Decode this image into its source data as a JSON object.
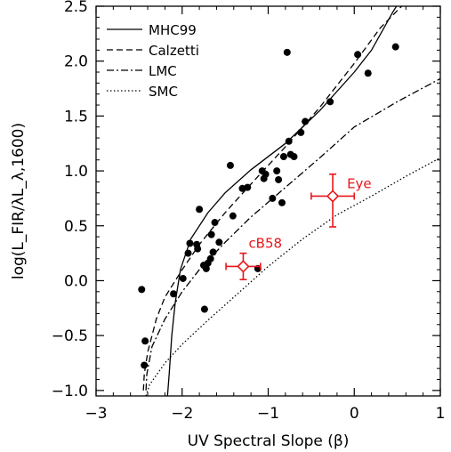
{
  "chart_data": {
    "type": "scatter",
    "xlabel": "UV Spectral Slope (β)",
    "ylabel": "log(L_FIR/λL_λ,1600)",
    "xlim": [
      -3,
      1
    ],
    "ylim": [
      -1.05,
      2.5
    ],
    "xticks": [
      "−3",
      "−2",
      "−1",
      "0",
      "1"
    ],
    "yticks": [
      "−1.0",
      "−0.5",
      "0.0",
      "0.5",
      "1.0",
      "1.5",
      "2.0",
      "2.5"
    ],
    "points": [
      {
        "x": -2.47,
        "y": -0.08
      },
      {
        "x": -2.43,
        "y": -0.55
      },
      {
        "x": -2.44,
        "y": -0.77
      },
      {
        "x": -2.1,
        "y": -0.12
      },
      {
        "x": -1.93,
        "y": 0.25
      },
      {
        "x": -1.91,
        "y": 0.34
      },
      {
        "x": -1.99,
        "y": 0.02
      },
      {
        "x": -1.83,
        "y": 0.33
      },
      {
        "x": -1.82,
        "y": 0.29
      },
      {
        "x": -1.8,
        "y": 0.65
      },
      {
        "x": -1.75,
        "y": 0.14
      },
      {
        "x": -1.72,
        "y": 0.11
      },
      {
        "x": -1.7,
        "y": 0.16
      },
      {
        "x": -1.67,
        "y": 0.2
      },
      {
        "x": -1.66,
        "y": 0.42
      },
      {
        "x": -1.64,
        "y": 0.26
      },
      {
        "x": -1.62,
        "y": 0.53
      },
      {
        "x": -1.57,
        "y": 0.35
      },
      {
        "x": -1.74,
        "y": -0.26
      },
      {
        "x": -1.44,
        "y": 1.05
      },
      {
        "x": -1.41,
        "y": 0.59
      },
      {
        "x": -1.3,
        "y": 0.84
      },
      {
        "x": -1.24,
        "y": 0.85
      },
      {
        "x": -1.12,
        "y": 0.11
      },
      {
        "x": -1.07,
        "y": 1.0
      },
      {
        "x": -1.05,
        "y": 0.93
      },
      {
        "x": -1.03,
        "y": 0.97
      },
      {
        "x": -0.95,
        "y": 0.75
      },
      {
        "x": -0.9,
        "y": 1.0
      },
      {
        "x": -0.88,
        "y": 0.92
      },
      {
        "x": -0.84,
        "y": 0.71
      },
      {
        "x": -0.82,
        "y": 1.13
      },
      {
        "x": -0.78,
        "y": 2.08
      },
      {
        "x": -0.76,
        "y": 1.27
      },
      {
        "x": -0.74,
        "y": 1.15
      },
      {
        "x": -0.7,
        "y": 1.13
      },
      {
        "x": -0.62,
        "y": 1.35
      },
      {
        "x": -0.57,
        "y": 1.45
      },
      {
        "x": -0.28,
        "y": 1.63
      },
      {
        "x": 0.04,
        "y": 2.06
      },
      {
        "x": 0.16,
        "y": 1.89
      },
      {
        "x": 0.48,
        "y": 2.13
      }
    ],
    "highlighted": [
      {
        "label": "Eye",
        "x": -0.25,
        "y": 0.77,
        "xerr": 0.25,
        "yerr_up": 0.2,
        "yerr_down": 0.28
      },
      {
        "label": "cB58",
        "x": -1.29,
        "y": 0.13,
        "xerr": 0.2,
        "yerr_up": 0.12,
        "yerr_down": 0.12
      }
    ],
    "legend": {
      "placement": "top-left",
      "entries": [
        {
          "name": "MHC99",
          "style": "solid"
        },
        {
          "name": "Calzetti",
          "style": "dashed"
        },
        {
          "name": "LMC",
          "style": "dashdot"
        },
        {
          "name": "SMC",
          "style": "dotted"
        }
      ]
    },
    "curves": [
      {
        "name": "MHC99",
        "style": "solid",
        "points": [
          [
            -2.17,
            -1.05
          ],
          [
            -2.15,
            -0.85
          ],
          [
            -2.12,
            -0.5
          ],
          [
            -2.08,
            -0.2
          ],
          [
            -2.02,
            0.1
          ],
          [
            -1.9,
            0.38
          ],
          [
            -1.7,
            0.62
          ],
          [
            -1.5,
            0.8
          ],
          [
            -1.2,
            1.01
          ],
          [
            -0.8,
            1.25
          ],
          [
            -0.4,
            1.55
          ],
          [
            0,
            1.9
          ],
          [
            0.2,
            2.1
          ],
          [
            0.45,
            2.45
          ],
          [
            0.49,
            2.5
          ]
        ]
      },
      {
        "name": "Calzetti",
        "style": "dashed",
        "points": [
          [
            -2.45,
            -1.0
          ],
          [
            -2.44,
            -0.85
          ],
          [
            -2.4,
            -0.65
          ],
          [
            -2.3,
            -0.35
          ],
          [
            -2.2,
            -0.15
          ],
          [
            -2.0,
            0.1
          ],
          [
            -1.8,
            0.33
          ],
          [
            -1.5,
            0.62
          ],
          [
            -1.2,
            0.88
          ],
          [
            -0.8,
            1.22
          ],
          [
            -0.4,
            1.58
          ],
          [
            0,
            1.98
          ],
          [
            0.3,
            2.3
          ],
          [
            0.55,
            2.5
          ]
        ]
      },
      {
        "name": "LMC",
        "style": "dashdot",
        "points": [
          [
            -2.42,
            -1.0
          ],
          [
            -2.41,
            -0.85
          ],
          [
            -2.35,
            -0.6
          ],
          [
            -2.2,
            -0.35
          ],
          [
            -2.0,
            -0.1
          ],
          [
            -1.8,
            0.1
          ],
          [
            -1.5,
            0.35
          ],
          [
            -1.2,
            0.58
          ],
          [
            -0.8,
            0.85
          ],
          [
            -0.4,
            1.12
          ],
          [
            0,
            1.4
          ],
          [
            0.5,
            1.63
          ],
          [
            1.0,
            1.84
          ]
        ]
      },
      {
        "name": "SMC",
        "style": "dotted",
        "points": [
          [
            -2.42,
            -1.05
          ],
          [
            -2.38,
            -0.95
          ],
          [
            -2.2,
            -0.75
          ],
          [
            -2.0,
            -0.58
          ],
          [
            -1.7,
            -0.36
          ],
          [
            -1.4,
            -0.15
          ],
          [
            -1.0,
            0.13
          ],
          [
            -0.6,
            0.38
          ],
          [
            -0.2,
            0.6
          ],
          [
            0.2,
            0.77
          ],
          [
            0.6,
            0.95
          ],
          [
            1.0,
            1.12
          ]
        ]
      }
    ],
    "grid": false
  },
  "colors": {
    "points": "#000000",
    "highlight": "#e8161b",
    "axes": "#000000"
  }
}
